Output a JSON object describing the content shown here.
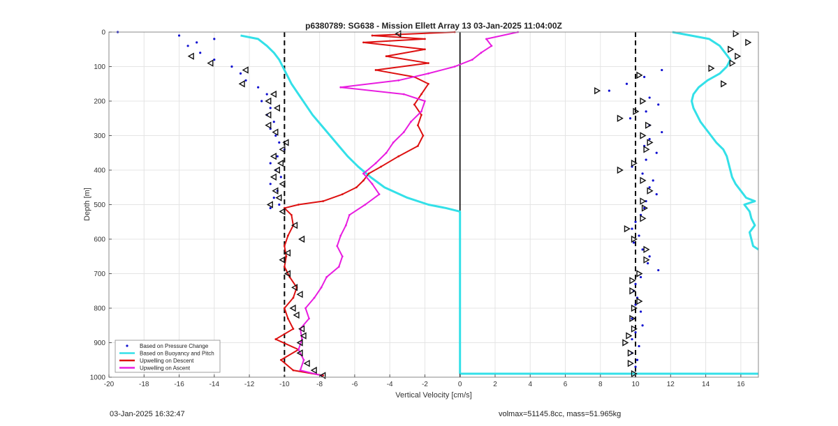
{
  "chart_data": {
    "type": "line",
    "title": "p6380789: SG638 - Mission Ellett Array 13 03-Jan-2025 11:04:00Z",
    "xlabel": "Vertical Velocity [cm/s]",
    "ylabel": "Depth [m]",
    "xlim": [
      -20,
      17
    ],
    "ylim": [
      1000,
      0
    ],
    "y_reversed": true,
    "grid": true,
    "legend_position": "bottom-left",
    "x_ticks": [
      -20,
      -18,
      -16,
      -14,
      -12,
      -10,
      -8,
      -6,
      -4,
      -2,
      0,
      2,
      4,
      6,
      8,
      10,
      12,
      14,
      16
    ],
    "y_ticks": [
      0,
      100,
      200,
      300,
      400,
      500,
      600,
      700,
      800,
      900,
      1000
    ],
    "reference_lines": [
      {
        "x": -10,
        "style": "dashed",
        "color": "#000000"
      },
      {
        "x": 10,
        "style": "dashed",
        "color": "#000000"
      },
      {
        "x": 0,
        "style": "solid",
        "color": "#000000",
        "y_range": [
          0,
          1000
        ]
      }
    ],
    "series": [
      {
        "name": "Based on Pressure Change",
        "style": "markers",
        "color": "#1010d0",
        "segments": [
          {
            "depth": [
              0,
              10,
              20,
              30,
              40,
              60,
              80,
              100,
              120,
              140,
              160,
              180,
              200,
              220,
              240,
              260,
              280,
              300,
              320,
              340,
              360,
              380,
              400,
              420,
              440,
              460,
              480,
              500,
              510
            ],
            "velocity": [
              -19.5,
              -16,
              -14,
              -15,
              -15.5,
              -14.8,
              -14,
              -13,
              -12.5,
              -12.2,
              -11.5,
              -11,
              -11.3,
              -10.8,
              -11,
              -10.6,
              -10.8,
              -10.5,
              -10.3,
              -10,
              -10.4,
              -10.8,
              -10.5,
              -10.2,
              -10.8,
              -10.4,
              -10.6,
              -10.3,
              -10.8
            ]
          },
          {
            "depth": [
              110,
              130,
              150,
              170,
              190,
              210,
              230,
              250,
              270,
              290,
              310,
              330,
              350,
              370,
              390,
              410,
              430,
              450,
              470,
              490,
              510,
              530,
              550,
              570,
              590,
              610,
              630,
              650,
              670,
              690,
              710,
              730,
              750,
              770,
              790,
              810,
              830,
              850,
              870,
              890,
              910,
              930,
              950,
              970,
              990
            ],
            "velocity": [
              11.5,
              10.5,
              9.5,
              8.5,
              10.8,
              11.3,
              10.6,
              9.7,
              10.8,
              11.5,
              10.8,
              10.5,
              11.2,
              10.6,
              9.8,
              10.4,
              11.0,
              10.8,
              11.2,
              10.6,
              10.5,
              10.3,
              10.0,
              9.8,
              10.2,
              9.9,
              10.4,
              10.8,
              10.7,
              11.3,
              10.3,
              10.0,
              9.9,
              10.1,
              10.0,
              10.3,
              9.8,
              10.4,
              10.0,
              9.8,
              10.2,
              9.8,
              10.1,
              10.0,
              10.0
            ]
          }
        ]
      },
      {
        "name": "Based on Buoyancy and Pitch",
        "style": "line",
        "color": "#33e0e8",
        "segments": [
          {
            "depth": [
              10,
              20,
              40,
              60,
              80,
              100,
              120,
              150,
              180,
              210,
              240,
              270,
              300,
              330,
              360,
              390,
              420,
              450,
              480,
              500,
              510,
              520,
              540,
              600,
              700,
              800,
              900,
              990
            ],
            "velocity": [
              -12.5,
              -11.5,
              -11,
              -10.6,
              -10.3,
              -10.1,
              -9.9,
              -9.6,
              -9.2,
              -8.8,
              -8.4,
              -7.9,
              -7.4,
              -6.9,
              -6.4,
              -5.8,
              -5.1,
              -4.3,
              -3.0,
              -1.8,
              -0.8,
              0,
              0,
              0,
              0,
              0,
              0,
              0
            ]
          },
          {
            "depth": [
              990,
              990
            ],
            "velocity": [
              0,
              17
            ]
          },
          {
            "depth": [
              0,
              20,
              40,
              60,
              80,
              100,
              120,
              140,
              160,
              180,
              200,
              220,
              240,
              260,
              280,
              300,
              320,
              340,
              360,
              380,
              400,
              420,
              440,
              460,
              480,
              490,
              500,
              520,
              540,
              560,
              580,
              600,
              620,
              630
            ],
            "velocity": [
              12.1,
              14.2,
              14.8,
              15.1,
              15.4,
              15.2,
              14.8,
              14.1,
              13.6,
              13.3,
              13.2,
              13.3,
              13.5,
              13.7,
              14.0,
              14.3,
              14.6,
              15.0,
              15.2,
              15.3,
              15.4,
              15.5,
              15.7,
              16.0,
              16.3,
              16.8,
              16.2,
              16.5,
              16.6,
              16.8,
              16.5,
              16.6,
              16.7,
              17.0
            ]
          }
        ]
      },
      {
        "name": "Upwelling on Descent",
        "style": "line-markers",
        "color": "#dd1010",
        "segments": [
          {
            "depth": [
              0,
              10,
              20,
              30,
              50,
              70,
              90,
              110,
              130,
              150,
              180,
              210,
              240,
              270,
              300,
              330,
              360,
              390,
              410,
              430,
              450,
              470,
              490,
              500,
              510,
              530,
              560,
              590,
              620,
              650,
              680,
              710,
              740,
              770,
              800,
              830,
              860,
              890,
              920,
              950,
              980,
              995
            ],
            "velocity": [
              -0.3,
              -5,
              -2,
              -5.5,
              -2,
              -4.2,
              -1.8,
              -4.8,
              -2.6,
              -1.8,
              -2.2,
              -2.6,
              -2.2,
              -2.4,
              -2.1,
              -2.4,
              -3.5,
              -4.5,
              -5.2,
              -5.5,
              -5.9,
              -6.7,
              -7.8,
              -9.2,
              -10,
              -9.6,
              -9.5,
              -9.8,
              -10,
              -9.9,
              -10,
              -9.7,
              -9.3,
              -9.5,
              -10,
              -9.8,
              -9.5,
              -10.5,
              -9.2,
              -10.2,
              -9.5,
              -7.8
            ]
          }
        ]
      },
      {
        "name": "Upwelling on Ascent",
        "style": "line-markers",
        "color": "#e81ce0",
        "segments": [
          {
            "depth": [
              0,
              20,
              40,
              60,
              80,
              100,
              120,
              140,
              160,
              180,
              200,
              230,
              260,
              290,
              320,
              350,
              380,
              410,
              440,
              470,
              500,
              530,
              560,
              590,
              620,
              650,
              680,
              710,
              740,
              770,
              800,
              830,
              860,
              890,
              920,
              950,
              980,
              995
            ],
            "velocity": [
              3.3,
              1.5,
              1.8,
              1.2,
              0.7,
              -0.3,
              -1.8,
              -3.5,
              -6.8,
              -3.2,
              -2.0,
              -2.2,
              -2.8,
              -3.2,
              -3.8,
              -4.2,
              -4.8,
              -5.5,
              -5.0,
              -4.6,
              -5.4,
              -6.3,
              -6.5,
              -6.8,
              -7.0,
              -6.7,
              -6.9,
              -7.6,
              -7.9,
              -8.3,
              -8.8,
              -8.6,
              -9.1,
              -9.0,
              -9.2,
              -8.9,
              -9.1,
              -7.9
            ]
          }
        ]
      }
    ],
    "triangle_markers": {
      "color": "#111111",
      "left": {
        "depth": [
          5,
          70,
          90,
          110,
          150,
          180,
          200,
          220,
          240,
          270,
          290,
          320,
          340,
          360,
          380,
          400,
          420,
          440,
          460,
          480,
          500,
          520,
          560,
          600,
          640,
          660,
          700,
          740,
          760,
          800,
          820,
          860,
          880,
          900,
          930,
          960,
          980,
          995
        ],
        "velocity": [
          -3.5,
          -15.3,
          -14.2,
          -12.2,
          -12.4,
          -10.6,
          -10.9,
          -10.4,
          -10.9,
          -10.9,
          -10.5,
          -9.9,
          -10.1,
          -10.6,
          -10.2,
          -10.4,
          -10.6,
          -10.1,
          -10.5,
          -10.3,
          -10.8,
          -10.1,
          -9.4,
          -9,
          -9.8,
          -10.1,
          -9.8,
          -9.4,
          -9.1,
          -9.5,
          -9.3,
          -9,
          -8.9,
          -9.1,
          -9.1,
          -8.7,
          -8.3,
          -7.8
        ]
      },
      "right": {
        "depth": [
          5,
          30,
          50,
          70,
          90,
          105,
          125,
          150,
          170,
          200,
          230,
          250,
          270,
          300,
          320,
          340,
          380,
          400,
          430,
          460,
          490,
          510,
          540,
          570,
          600,
          630,
          660,
          700,
          720,
          750,
          780,
          800,
          830,
          860,
          880,
          900,
          930,
          960,
          990
        ],
        "velocity": [
          15.7,
          16.4,
          15.4,
          15.8,
          15.5,
          14.3,
          10.2,
          15.0,
          7.8,
          10.4,
          10.0,
          9.1,
          10.7,
          10.4,
          10.8,
          10.6,
          9.9,
          9.1,
          10.4,
          10.8,
          10.4,
          10.5,
          10.4,
          9.5,
          9.9,
          10.6,
          10.6,
          10.2,
          9.8,
          9.8,
          10.2,
          9.9,
          9.8,
          9.9,
          9.6,
          9.4,
          9.7,
          9.7,
          9.9
        ]
      }
    },
    "legend": [
      {
        "label": "Based on Pressure Change",
        "kind": "marker",
        "color": "#1010d0"
      },
      {
        "label": "Based on Buoyancy and Pitch",
        "kind": "line",
        "color": "#33e0e8"
      },
      {
        "label": "Upwelling on Descent",
        "kind": "line",
        "color": "#dd1010"
      },
      {
        "label": "Upwelling on Ascent",
        "kind": "line",
        "color": "#e81ce0"
      }
    ]
  },
  "footer": {
    "timestamp": "03-Jan-2025 16:32:47",
    "params": "volmax=51145.8cc, mass=51.965kg"
  }
}
